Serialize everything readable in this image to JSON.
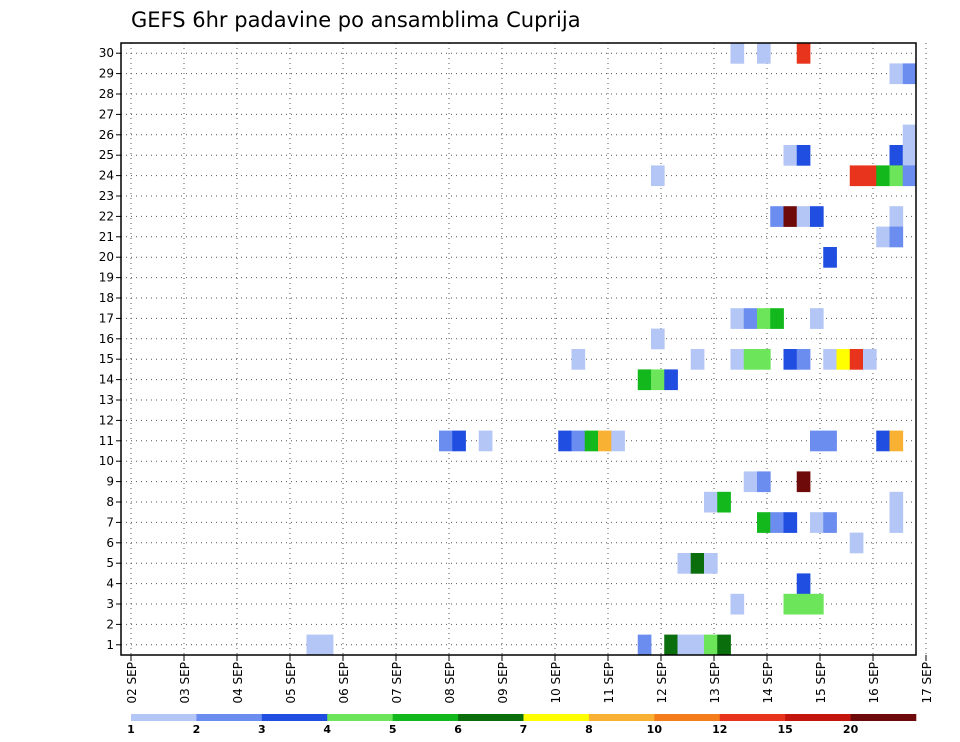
{
  "chart_data": {
    "type": "heatmap",
    "title": "GEFS 6hr padavine po ansamblima Cuprija",
    "xlabel": "",
    "ylabel": "",
    "grid": true,
    "x_tick_labels": [
      "02 SEP",
      "03 SEP",
      "04 SEP",
      "05 SEP",
      "06 SEP",
      "07 SEP",
      "08 SEP",
      "09 SEP",
      "10 SEP",
      "11 SEP",
      "12 SEP",
      "13 SEP",
      "14 SEP",
      "15 SEP",
      "16 SEP",
      "17 SEP"
    ],
    "y_tick_labels": [
      "1",
      "2",
      "3",
      "4",
      "5",
      "6",
      "7",
      "8",
      "9",
      "10",
      "11",
      "12",
      "13",
      "14",
      "15",
      "16",
      "17",
      "18",
      "19",
      "20",
      "21",
      "22",
      "23",
      "24",
      "25",
      "26",
      "27",
      "28",
      "29",
      "30"
    ],
    "xlim_steps": [
      0,
      60
    ],
    "ylim": [
      0,
      30
    ],
    "color_scale": {
      "boundaries": [
        "1",
        "2",
        "3",
        "4",
        "5",
        "6",
        "7",
        "8",
        "10",
        "12",
        "15",
        "20"
      ],
      "colors": [
        "#b3c6f5",
        "#6b8def",
        "#1f4ee0",
        "#6de55b",
        "#12b81c",
        "#0a6e0c",
        "#ffff00",
        "#f9b133",
        "#f57c1a",
        "#e8341c",
        "#c4140e",
        "#6e0a0a"
      ]
    },
    "cells": [
      {
        "member": 30,
        "step": 47,
        "cat": 1
      },
      {
        "member": 30,
        "step": 49,
        "cat": 1
      },
      {
        "member": 30,
        "step": 52,
        "cat": 10
      },
      {
        "member": 29,
        "step": 59,
        "cat": 1
      },
      {
        "member": 29,
        "step": 60,
        "cat": 2
      },
      {
        "member": 26,
        "step": 60,
        "cat": 1
      },
      {
        "member": 25,
        "step": 51,
        "cat": 1
      },
      {
        "member": 25,
        "step": 52,
        "cat": 3
      },
      {
        "member": 25,
        "step": 59,
        "cat": 3
      },
      {
        "member": 25,
        "step": 60,
        "cat": 1
      },
      {
        "member": 24,
        "step": 41,
        "cat": 1
      },
      {
        "member": 24,
        "step": 56,
        "cat": 10
      },
      {
        "member": 24,
        "step": 57,
        "cat": 10
      },
      {
        "member": 24,
        "step": 58,
        "cat": 5
      },
      {
        "member": 24,
        "step": 59,
        "cat": 4
      },
      {
        "member": 24,
        "step": 60,
        "cat": 2
      },
      {
        "member": 22,
        "step": 50,
        "cat": 2
      },
      {
        "member": 22,
        "step": 51,
        "cat": 12
      },
      {
        "member": 22,
        "step": 52,
        "cat": 1
      },
      {
        "member": 22,
        "step": 53,
        "cat": 3
      },
      {
        "member": 22,
        "step": 59,
        "cat": 1
      },
      {
        "member": 21,
        "step": 58,
        "cat": 1
      },
      {
        "member": 21,
        "step": 59,
        "cat": 2
      },
      {
        "member": 20,
        "step": 54,
        "cat": 3
      },
      {
        "member": 17,
        "step": 47,
        "cat": 1
      },
      {
        "member": 17,
        "step": 48,
        "cat": 2
      },
      {
        "member": 17,
        "step": 49,
        "cat": 4
      },
      {
        "member": 17,
        "step": 50,
        "cat": 5
      },
      {
        "member": 17,
        "step": 53,
        "cat": 1
      },
      {
        "member": 16,
        "step": 41,
        "cat": 1
      },
      {
        "member": 15,
        "step": 35,
        "cat": 1
      },
      {
        "member": 15,
        "step": 44,
        "cat": 1
      },
      {
        "member": 15,
        "step": 47,
        "cat": 1
      },
      {
        "member": 15,
        "step": 48,
        "cat": 4
      },
      {
        "member": 15,
        "step": 49,
        "cat": 4
      },
      {
        "member": 15,
        "step": 51,
        "cat": 3
      },
      {
        "member": 15,
        "step": 52,
        "cat": 2
      },
      {
        "member": 15,
        "step": 54,
        "cat": 1
      },
      {
        "member": 15,
        "step": 55,
        "cat": 7
      },
      {
        "member": 15,
        "step": 56,
        "cat": 10
      },
      {
        "member": 15,
        "step": 57,
        "cat": 1
      },
      {
        "member": 14,
        "step": 40,
        "cat": 5
      },
      {
        "member": 14,
        "step": 41,
        "cat": 4
      },
      {
        "member": 14,
        "step": 42,
        "cat": 3
      },
      {
        "member": 11,
        "step": 25,
        "cat": 2
      },
      {
        "member": 11,
        "step": 26,
        "cat": 3
      },
      {
        "member": 11,
        "step": 28,
        "cat": 1
      },
      {
        "member": 11,
        "step": 34,
        "cat": 3
      },
      {
        "member": 11,
        "step": 35,
        "cat": 2
      },
      {
        "member": 11,
        "step": 36,
        "cat": 5
      },
      {
        "member": 11,
        "step": 37,
        "cat": 8
      },
      {
        "member": 11,
        "step": 38,
        "cat": 1
      },
      {
        "member": 11,
        "step": 53,
        "cat": 2
      },
      {
        "member": 11,
        "step": 54,
        "cat": 2
      },
      {
        "member": 11,
        "step": 58,
        "cat": 3
      },
      {
        "member": 11,
        "step": 59,
        "cat": 8
      },
      {
        "member": 9,
        "step": 48,
        "cat": 1
      },
      {
        "member": 9,
        "step": 49,
        "cat": 2
      },
      {
        "member": 9,
        "step": 52,
        "cat": 12
      },
      {
        "member": 8,
        "step": 45,
        "cat": 1
      },
      {
        "member": 8,
        "step": 46,
        "cat": 5
      },
      {
        "member": 8,
        "step": 59,
        "cat": 1
      },
      {
        "member": 7,
        "step": 49,
        "cat": 5
      },
      {
        "member": 7,
        "step": 50,
        "cat": 2
      },
      {
        "member": 7,
        "step": 51,
        "cat": 3
      },
      {
        "member": 7,
        "step": 53,
        "cat": 1
      },
      {
        "member": 7,
        "step": 54,
        "cat": 2
      },
      {
        "member": 7,
        "step": 59,
        "cat": 1
      },
      {
        "member": 6,
        "step": 56,
        "cat": 1
      },
      {
        "member": 5,
        "step": 43,
        "cat": 1
      },
      {
        "member": 5,
        "step": 44,
        "cat": 6
      },
      {
        "member": 5,
        "step": 45,
        "cat": 1
      },
      {
        "member": 4,
        "step": 52,
        "cat": 3
      },
      {
        "member": 3,
        "step": 47,
        "cat": 1
      },
      {
        "member": 3,
        "step": 51,
        "cat": 4
      },
      {
        "member": 3,
        "step": 52,
        "cat": 4
      },
      {
        "member": 3,
        "step": 53,
        "cat": 4
      },
      {
        "member": 1,
        "step": 15,
        "cat": 1
      },
      {
        "member": 1,
        "step": 16,
        "cat": 1
      },
      {
        "member": 1,
        "step": 40,
        "cat": 2
      },
      {
        "member": 1,
        "step": 42,
        "cat": 6
      },
      {
        "member": 1,
        "step": 43,
        "cat": 1
      },
      {
        "member": 1,
        "step": 44,
        "cat": 1
      },
      {
        "member": 1,
        "step": 45,
        "cat": 4
      },
      {
        "member": 1,
        "step": 46,
        "cat": 6
      }
    ]
  }
}
